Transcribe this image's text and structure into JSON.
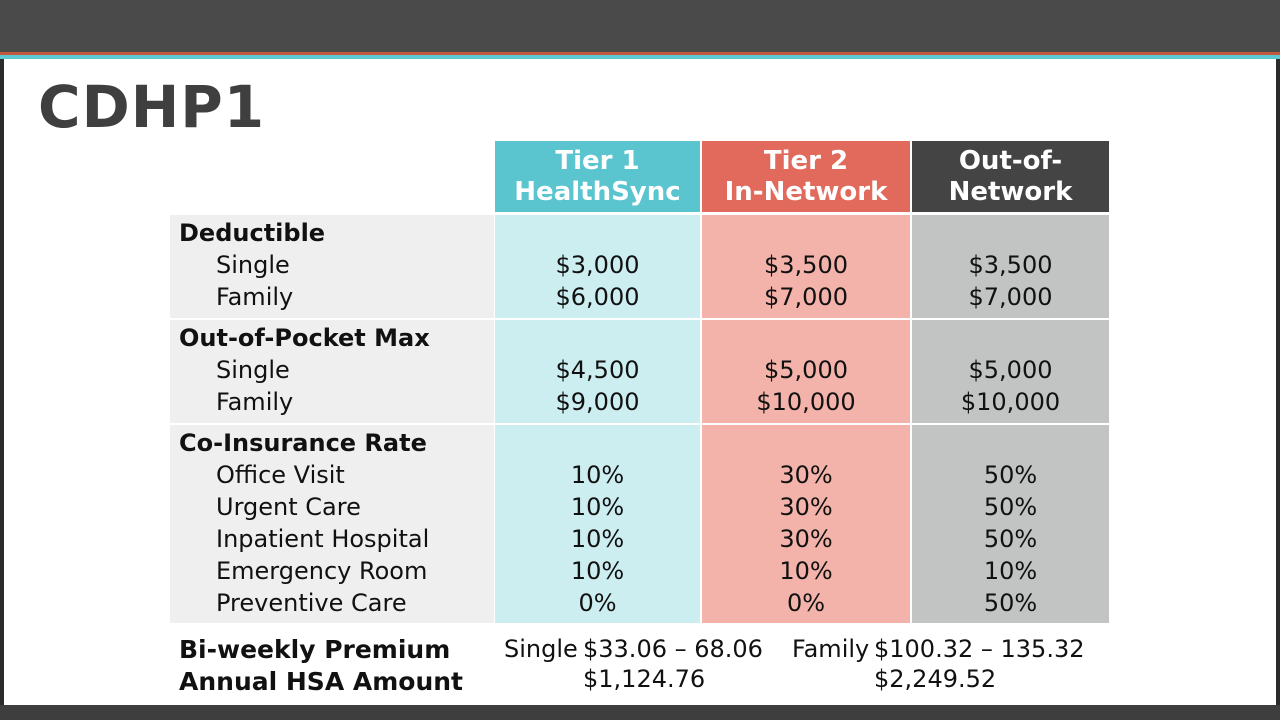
{
  "title": "CDHP1",
  "columns": [
    {
      "line1": "Tier 1",
      "line2": "HealthSync",
      "color": "#5ac4cf"
    },
    {
      "line1": "Tier 2",
      "line2": "In-Network",
      "color": "#e26a5c"
    },
    {
      "line1": "Out-of-",
      "line2": "Network",
      "color": "#444444"
    }
  ],
  "sections": [
    {
      "label": "Deductible",
      "rows": [
        {
          "label": "Single",
          "values": [
            "$3,000",
            "$3,500",
            "$3,500"
          ]
        },
        {
          "label": "Family",
          "values": [
            "$6,000",
            "$7,000",
            "$7,000"
          ]
        }
      ]
    },
    {
      "label": "Out-of-Pocket Max",
      "rows": [
        {
          "label": "Single",
          "values": [
            "$4,500",
            "$5,000",
            "$5,000"
          ]
        },
        {
          "label": "Family",
          "values": [
            "$9,000",
            "$10,000",
            "$10,000"
          ]
        }
      ]
    },
    {
      "label": "Co-Insurance Rate",
      "rows": [
        {
          "label": "Office Visit",
          "values": [
            "10%",
            "30%",
            "50%"
          ]
        },
        {
          "label": "Urgent Care",
          "values": [
            "10%",
            "30%",
            "50%"
          ]
        },
        {
          "label": "Inpatient Hospital",
          "values": [
            "10%",
            "30%",
            "50%"
          ]
        },
        {
          "label": "Emergency Room",
          "values": [
            "10%",
            "10%",
            "10%"
          ]
        },
        {
          "label": "Preventive Care",
          "values": [
            "0%",
            "0%",
            "50%"
          ]
        }
      ]
    }
  ],
  "footer": {
    "premium_label": "Bi-weekly Premium",
    "hsa_label": "Annual HSA Amount",
    "single_label": "Single",
    "single_premium": "$33.06 – 68.06",
    "single_hsa": "$1,124.76",
    "family_label": "Family",
    "family_premium": "$100.32 – 135.32",
    "family_hsa": "$2,249.52"
  }
}
